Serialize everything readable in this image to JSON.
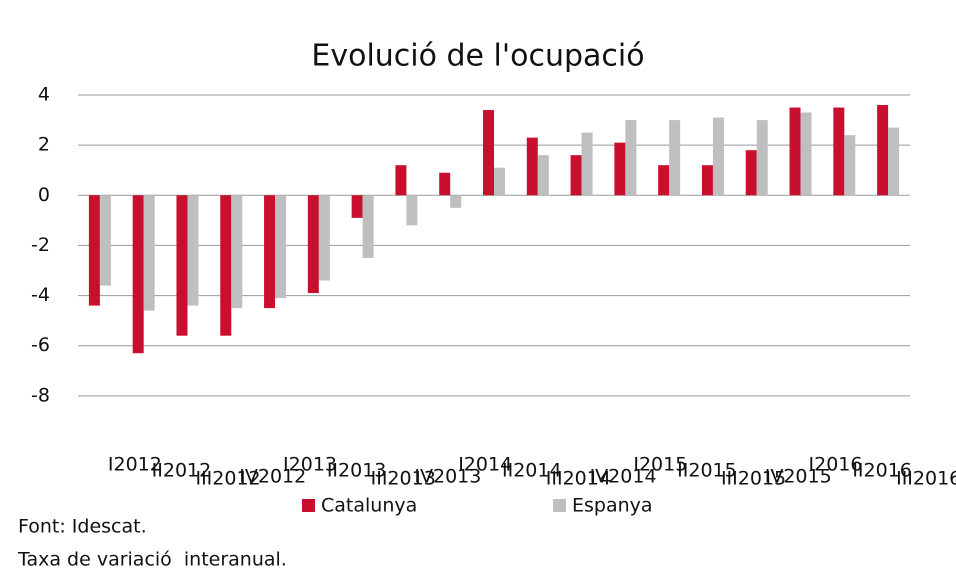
{
  "chart_data": {
    "type": "bar",
    "title": "Evolució de l'ocupació",
    "categories": [
      "I2012",
      "II2012",
      "III2012",
      "IV2012",
      "I2013",
      "II2013",
      "III2013",
      "IV2013",
      "I2014",
      "II2014",
      "III2014",
      "IV2014",
      "I2015",
      "II2015",
      "III2015",
      "IV2015",
      "I2016",
      "II2016",
      "III2016"
    ],
    "series": [
      {
        "name": "Catalunya",
        "color": "#c8102e",
        "values": [
          -4.4,
          -6.3,
          -5.6,
          -5.6,
          -4.5,
          -3.9,
          -0.9,
          1.2,
          0.9,
          3.4,
          2.3,
          1.6,
          2.1,
          1.2,
          1.2,
          1.8,
          3.5,
          3.5,
          3.6
        ]
      },
      {
        "name": "Espanya",
        "color": "#bfbfbf",
        "values": [
          -3.6,
          -4.6,
          -4.4,
          -4.5,
          -4.1,
          -3.4,
          -2.5,
          -1.2,
          -0.5,
          1.1,
          1.6,
          2.5,
          3.0,
          3.0,
          3.1,
          3.0,
          3.3,
          2.4,
          2.7
        ]
      }
    ],
    "ylim": [
      -10,
      4
    ],
    "yticks": [
      -8,
      -6,
      -4,
      -2,
      0,
      2,
      4
    ],
    "grid": true,
    "source": "Font: Idescat.",
    "note": "Taxa de variació  interanual."
  }
}
